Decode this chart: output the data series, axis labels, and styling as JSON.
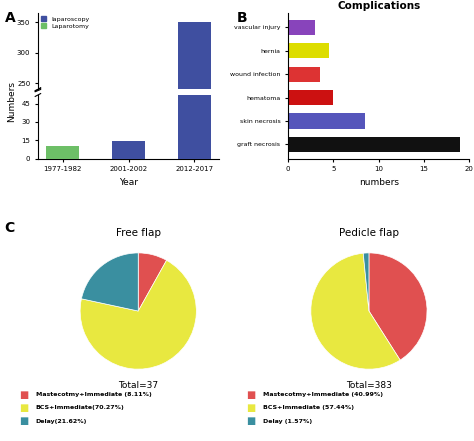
{
  "bar_chart": {
    "years": [
      "1977-1982",
      "2001-2002",
      "2012-2017"
    ],
    "laparoscopy": [
      0,
      14,
      350
    ],
    "laparotomy": [
      10,
      0,
      45
    ],
    "lap_color": "#3f4fa0",
    "lapa_color": "#6dbf67",
    "ylabel": "Numbers",
    "xlabel": "Year",
    "yticks_low": [
      0,
      15,
      30,
      45
    ],
    "yticks_high": [
      250,
      300,
      350
    ],
    "break_low": 55,
    "break_high": 240
  },
  "complications": {
    "categories": [
      "vascular injury",
      "hernia",
      "wound infection",
      "hematoma",
      "skin necrosis",
      "graft necrosis"
    ],
    "values": [
      3,
      4.5,
      3.5,
      5,
      8.5,
      19
    ],
    "colors": [
      "#8844bb",
      "#dddd00",
      "#dd3333",
      "#cc1111",
      "#5555bb",
      "#111111"
    ],
    "title": "Complications",
    "xlabel": "numbers",
    "xlim": [
      0,
      20
    ],
    "xticks": [
      0,
      5,
      10,
      15,
      20
    ]
  },
  "pie_free": {
    "title": "Free flap",
    "total_label": "Total=37",
    "slices": [
      8.11,
      70.27,
      21.62
    ],
    "colors": [
      "#e05050",
      "#e8e840",
      "#3a8fa0"
    ],
    "startangle": 90
  },
  "pie_pedicle": {
    "title": "Pedicle flap",
    "total_label": "Total=383",
    "slices": [
      40.99,
      57.44,
      1.57
    ],
    "colors": [
      "#e05050",
      "#e8e840",
      "#3a8fa0"
    ],
    "startangle": 90
  },
  "legend": {
    "free_labels": [
      "Mastecotmy+Immediate (8.11%)",
      "BCS+Immediate(70.27%)",
      "Delay(21.62%)"
    ],
    "pedicle_labels": [
      "Mastecotmy+Immediate (40.99%)",
      "BCS+Immediate (57.44%)",
      "Delay (1.57%)"
    ],
    "colors": [
      "#e05050",
      "#e8e840",
      "#3a8fa0"
    ]
  }
}
